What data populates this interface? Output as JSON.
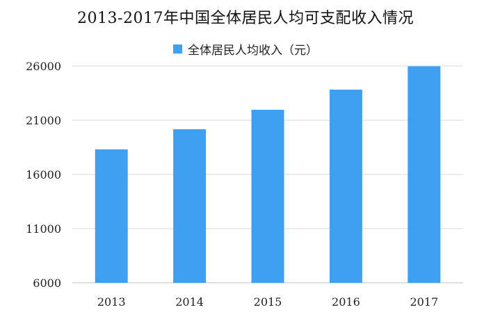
{
  "chart_data": {
    "type": "bar",
    "title": "2013-2017年中国全体居民人均可支配收入情况",
    "categories": [
      "2013",
      "2014",
      "2015",
      "2016",
      "2017"
    ],
    "series": [
      {
        "name": "全体居民人均收入（元）",
        "values": [
          18311,
          20167,
          21966,
          23821,
          25974
        ]
      }
    ],
    "xlabel": "",
    "ylabel": "",
    "ylim": [
      6000,
      26000
    ],
    "yticks": [
      6000,
      11000,
      16000,
      21000,
      26000
    ],
    "grid": true,
    "legend_position": "top",
    "colors": {
      "bar": "#3f9ff0",
      "grid": "#d9d9d9",
      "axis": "#bfbfbf"
    }
  }
}
